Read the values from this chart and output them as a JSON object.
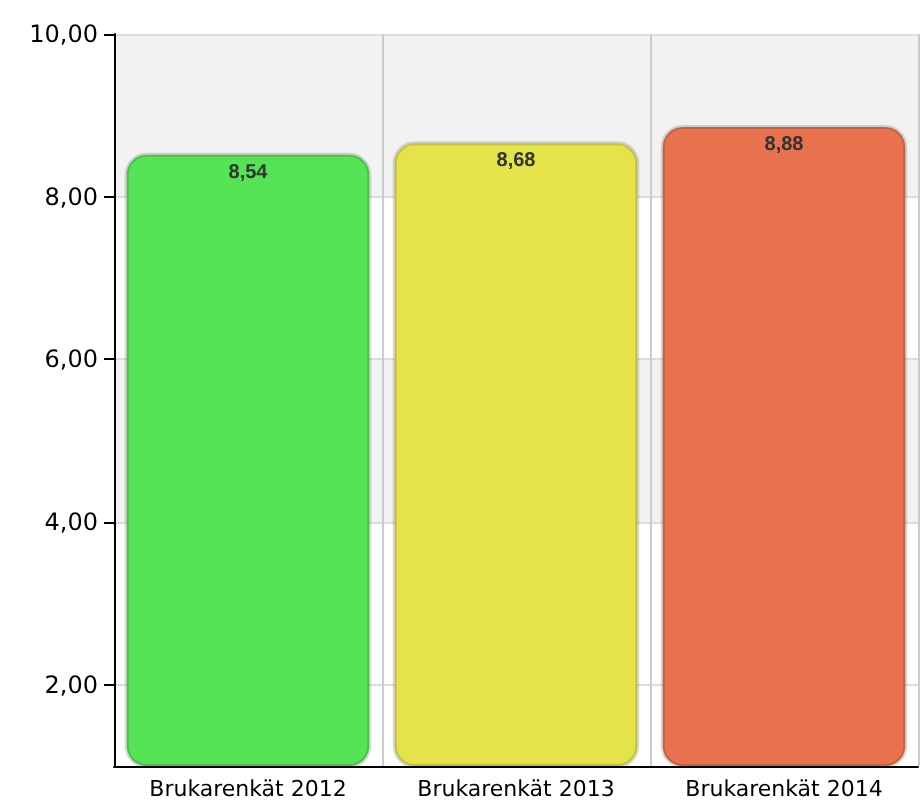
{
  "chart_data": {
    "type": "bar",
    "categories": [
      "Brukarenkät 2012",
      "Brukarenkät 2013",
      "Brukarenkät 2014"
    ],
    "values": [
      8.54,
      8.68,
      8.88
    ],
    "colors": [
      "#55e455",
      "#e4e44a",
      "#e8724e"
    ],
    "value_labels": [
      "8,54",
      "8,68",
      "8,88"
    ],
    "ylim": [
      1,
      10
    ],
    "yticks": [
      {
        "value": 2,
        "label": "2,00"
      },
      {
        "value": 4,
        "label": "4,00"
      },
      {
        "value": 6,
        "label": "6,00"
      },
      {
        "value": 8,
        "label": "8,00"
      },
      {
        "value": 10,
        "label": "10,00"
      }
    ],
    "grid": true
  }
}
